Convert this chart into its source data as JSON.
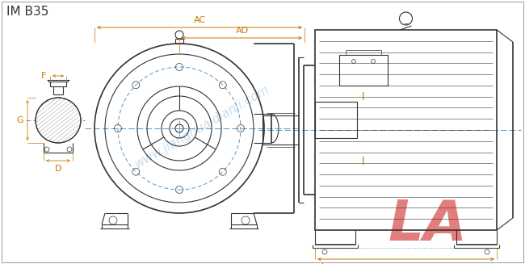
{
  "title": "IM B35",
  "watermark": "www.jianghuaidianji.com",
  "watermark2": "LA",
  "bg_color": "#ffffff",
  "line_color": "#333333",
  "dim_color": "#cc7700",
  "blue_dash_color": "#5599cc",
  "watermark_color": "#c8ddf0",
  "la_color": "#e07070",
  "title_color": "#333333",
  "title_fontsize": 11,
  "dim_label_fontsize": 8,
  "figsize": [
    6.5,
    3.27
  ],
  "dpi": 100
}
